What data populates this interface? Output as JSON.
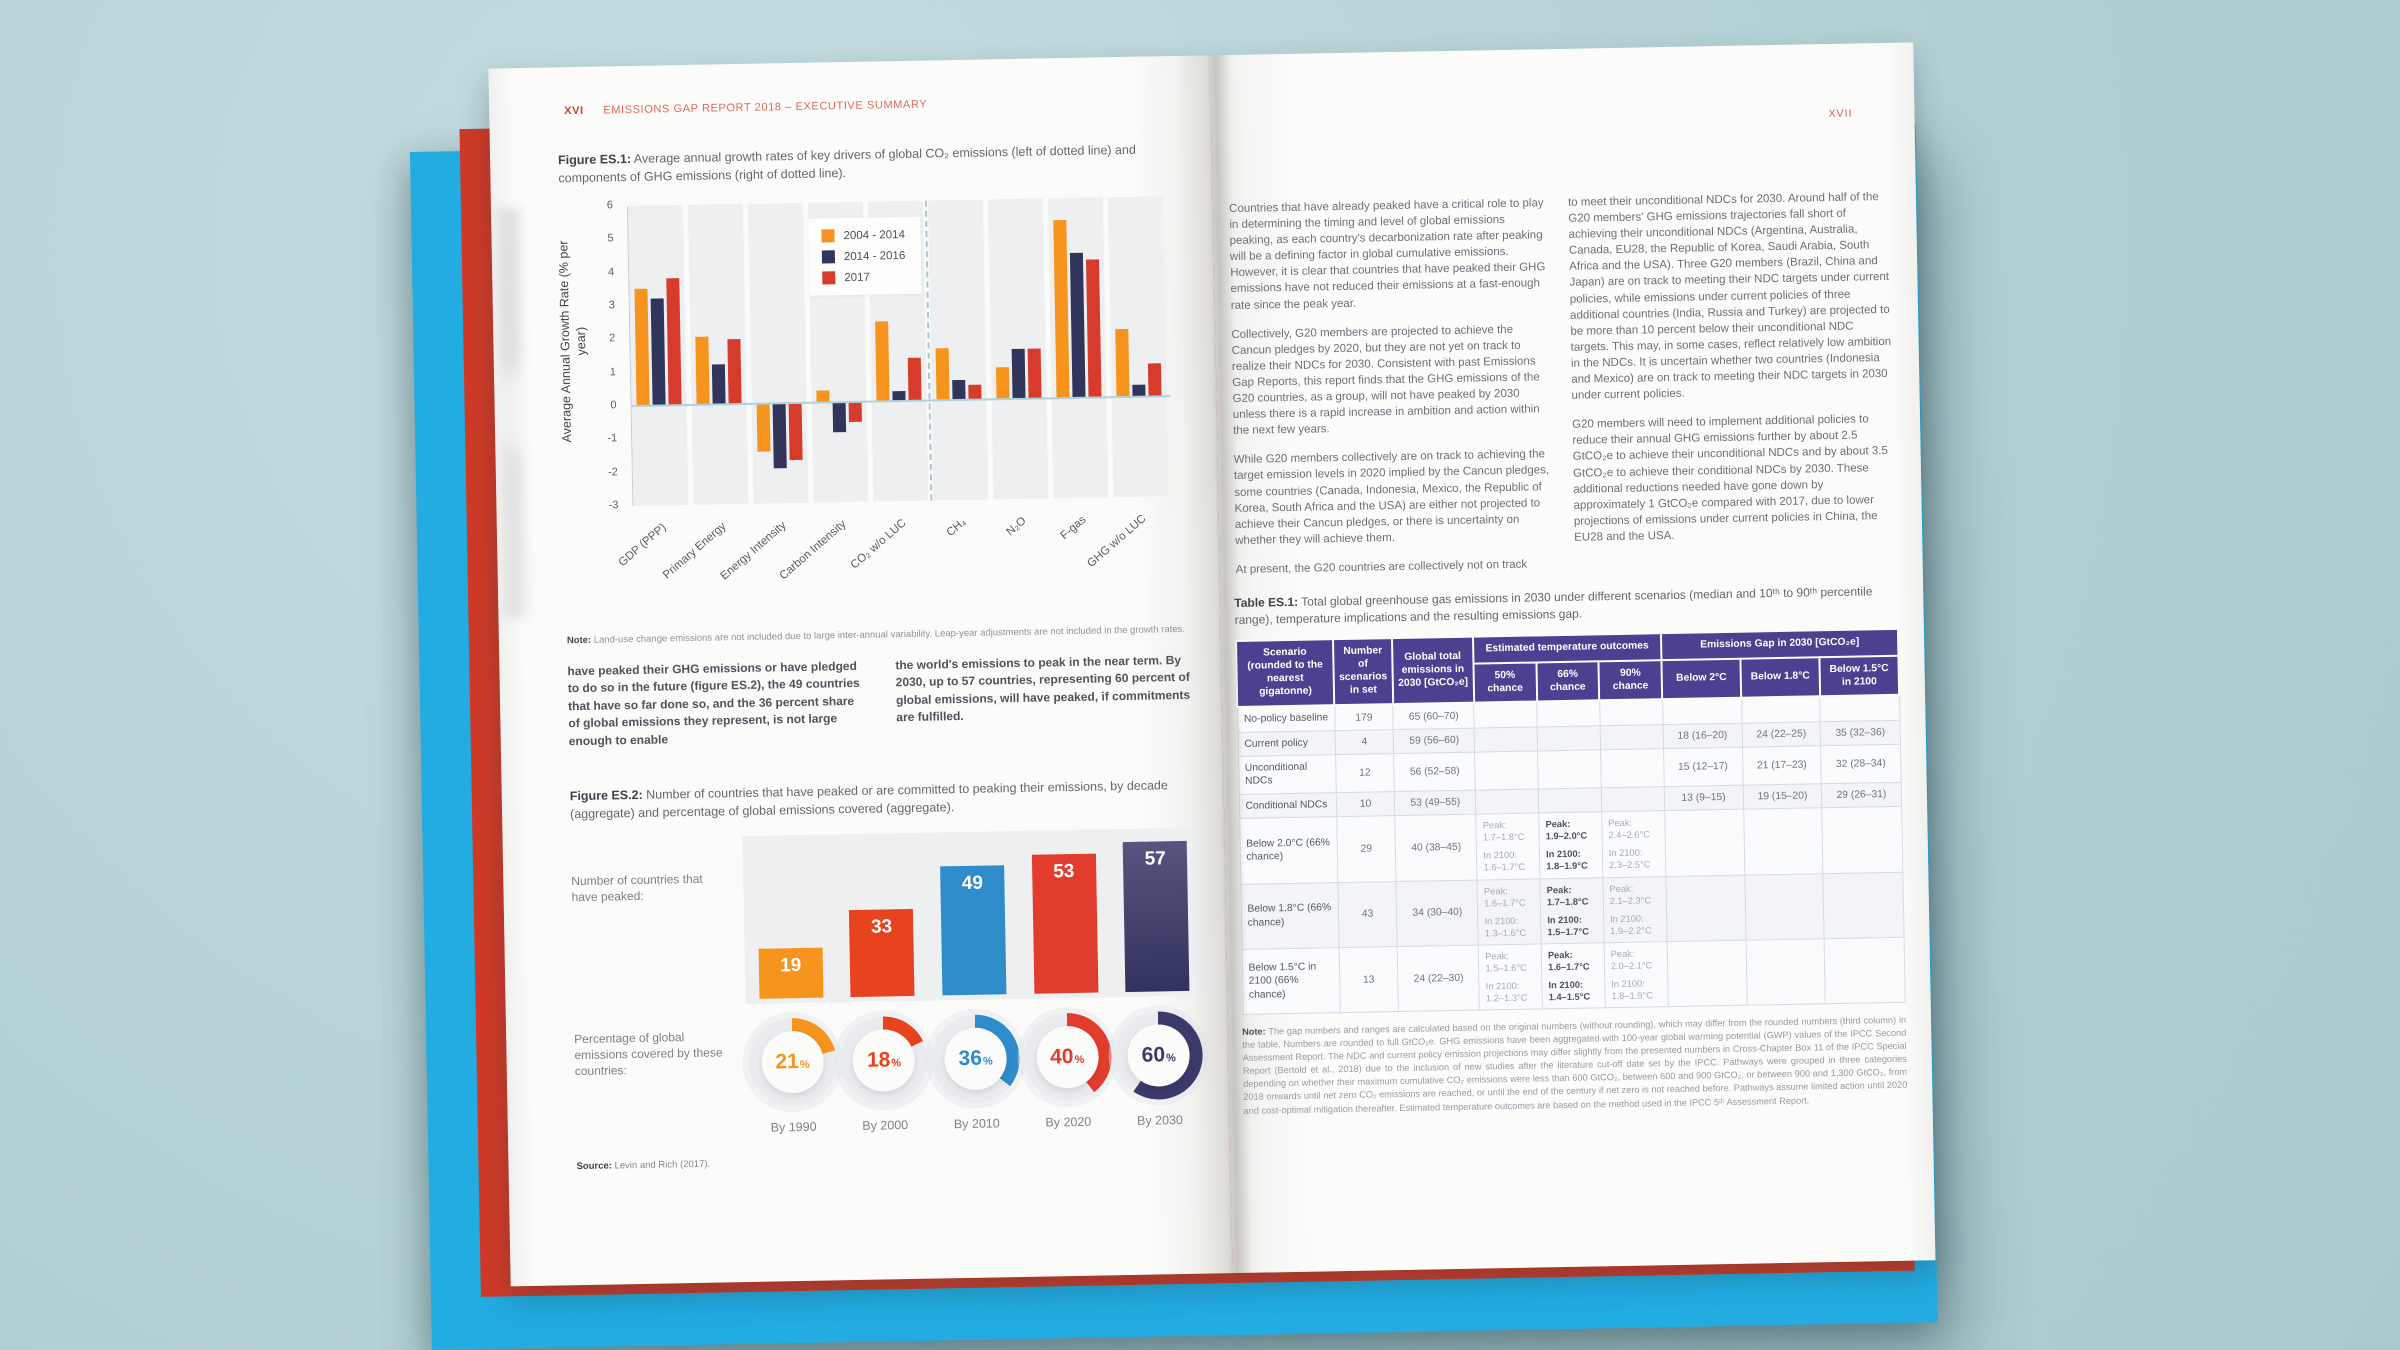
{
  "background_color": "#b4d1d5",
  "accent_colors": {
    "cover_blue": "#22ace2",
    "insert_red": "#d03a27",
    "header_red": "#dd6b55",
    "table_purple": "#4c4190"
  },
  "book": {
    "left_page": {
      "header": {
        "page_num": "XVI",
        "title": "EMISSIONS GAP REPORT 2018 – EXECUTIVE SUMMARY"
      },
      "figure1": {
        "caption_label": "Figure ES.1:",
        "caption_text": "Average annual growth rates of key drivers of global CO₂ emissions (left of dotted line) and components of GHG emissions (right of dotted line).",
        "note_label": "Note:",
        "note_text": "Land-use change emissions are not included due to large inter-annual variability. Leap-year adjustments are not included in the growth rates."
      },
      "body_col1": "have peaked their GHG emissions or have pledged to do so in the future (figure ES.2), the 49 countries that have so far done so, and the 36 percent share of global emissions they represent, is not large enough to enable",
      "body_col2": "the world's emissions to peak in the near term. By 2030, up to 57 countries, representing 60 percent of global emissions, will have peaked, if commitments are fulfilled.",
      "figure2": {
        "caption_label": "Figure ES.2:",
        "caption_text": "Number of countries that have peaked or are committed to peaking their emissions, by decade (aggregate) and percentage of global emissions covered (aggregate).",
        "row1_label": "Number of countries that have peaked:",
        "row2_label": "Percentage of global emissions covered by these countries:",
        "source_label": "Source:",
        "source_text": "Levin and Rich (2017)."
      }
    },
    "right_page": {
      "page_num": "XVII",
      "col1_paragraphs": [
        "Countries that have already peaked have a critical role to play in determining the timing and level of global emissions peaking, as each country's decarbonization rate after peaking will be a defining factor in global cumulative emissions. However, it is clear that countries that have peaked their GHG emissions have not reduced their emissions at a fast-enough rate since the peak year.",
        "Collectively, G20 members are projected to achieve the Cancun pledges by 2020, but they are not yet on track to realize their NDCs for 2030. Consistent with past Emissions Gap Reports, this report finds that the GHG emissions of the G20 countries, as a group, will not have peaked by 2030 unless there is a rapid increase in ambition and action within the next few years.",
        "While G20 members collectively are on track to achieving the target emission levels in 2020 implied by the Cancun pledges, some countries (Canada, Indonesia, Mexico, the Republic of Korea, South Africa and the USA) are either not projected to achieve their Cancun pledges, or there is uncertainty on whether they will achieve them.",
        "At present, the G20 countries are collectively not on track"
      ],
      "col2_paragraphs": [
        "to meet their unconditional NDCs for 2030. Around half of the G20 members' GHG emissions trajectories fall short of achieving their unconditional NDCs (Argentina, Australia, Canada, EU28, the Republic of Korea, Saudi Arabia, South Africa and the USA). Three G20 members (Brazil, China and Japan) are on track to meeting their NDC targets under current policies, while emissions under current policies of three additional countries (India, Russia and Turkey) are projected to be more than 10 percent below their unconditional NDC targets. This may, in some cases, reflect relatively low ambition in the NDCs. It is uncertain whether two countries (Indonesia and Mexico) are on track to meeting their NDC targets in 2030 under current policies.",
        "G20 members will need to implement additional policies to reduce their annual GHG emissions further by about 2.5 GtCO₂e to achieve their unconditional NDCs and by about 3.5 GtCO₂e to achieve their conditional NDCs by 2030. These additional reductions needed have gone down by approximately 1 GtCO₂e compared with 2017, due to lower projections of emissions under current policies in China, the EU28 and the USA."
      ],
      "table": {
        "caption_label": "Table ES.1:",
        "caption_text": "Total global greenhouse gas emissions in 2030 under different scenarios (median and 10ᵗʰ to 90ᵗʰ percentile range), temperature implications and the resulting emissions gap.",
        "header": {
          "scenario": "Scenario (rounded to the nearest gigatonne)",
          "num": "Number of scenarios in set",
          "total": "Global total emissions in 2030 [GtCO₂e]",
          "temp_group": "Estimated temperature outcomes",
          "temp_cols": [
            "50% chance",
            "66% chance",
            "90% chance"
          ],
          "gap_group": "Emissions Gap in 2030 [GtCO₂e]",
          "gap_cols": [
            "Below 2°C",
            "Below 1.8°C",
            "Below 1.5°C in 2100"
          ]
        },
        "peak_label": "Peak:",
        "y2100_label": "In 2100:",
        "rows": [
          {
            "scenario": "No-policy baseline",
            "num": "179",
            "total": "65 (60–70)",
            "temps": [
              null,
              null,
              null
            ],
            "gaps": [
              "",
              "",
              ""
            ]
          },
          {
            "scenario": "Current policy",
            "num": "4",
            "total": "59 (56–60)",
            "temps": [
              null,
              null,
              null
            ],
            "gaps": [
              "18 (16–20)",
              "24 (22–25)",
              "35 (32–36)"
            ]
          },
          {
            "scenario": "Unconditional NDCs",
            "num": "12",
            "total": "56 (52–58)",
            "temps": [
              null,
              null,
              null
            ],
            "gaps": [
              "15 (12–17)",
              "21 (17–23)",
              "32 (28–34)"
            ]
          },
          {
            "scenario": "Conditional NDCs",
            "num": "10",
            "total": "53 (49–55)",
            "temps": [
              null,
              null,
              null
            ],
            "gaps": [
              "13 (9–15)",
              "19 (15–20)",
              "29 (26–31)"
            ]
          },
          {
            "scenario": "Below 2.0°C (66% chance)",
            "num": "29",
            "total": "40 (38–45)",
            "temps": [
              {
                "peak": "1.7–1.8°C",
                "y2100": "1.6–1.7°C"
              },
              {
                "peak": "1.9–2.0°C",
                "y2100": "1.8–1.9°C"
              },
              {
                "peak": "2.4–2.6°C",
                "y2100": "2.3–2.5°C"
              }
            ],
            "gaps": [
              "",
              "",
              ""
            ]
          },
          {
            "scenario": "Below 1.8°C (66% chance)",
            "num": "43",
            "total": "34 (30–40)",
            "temps": [
              {
                "peak": "1.6–1.7°C",
                "y2100": "1.3–1.6°C"
              },
              {
                "peak": "1.7–1.8°C",
                "y2100": "1.5–1.7°C"
              },
              {
                "peak": "2.1–2.3°C",
                "y2100": "1.9–2.2°C"
              }
            ],
            "gaps": [
              "",
              "",
              ""
            ]
          },
          {
            "scenario": "Below 1.5°C in 2100 (66% chance)",
            "num": "13",
            "total": "24 (22–30)",
            "temps": [
              {
                "peak": "1.5–1.6°C",
                "y2100": "1.2–1.3°C"
              },
              {
                "peak": "1.6–1.7°C",
                "y2100": "1.4–1.5°C"
              },
              {
                "peak": "2.0–2.1°C",
                "y2100": "1.8–1.9°C"
              }
            ],
            "gaps": [
              "",
              "",
              ""
            ]
          }
        ],
        "note_label": "Note:",
        "note_text": "The gap numbers and ranges are calculated based on the original numbers (without rounding), which may differ from the rounded numbers (third column) in the table. Numbers are rounded to full GtCO₂e. GHG emissions have been aggregated with 100-year global warming potential (GWP) values of the IPCC Second Assessment Report. The NDC and current policy emission projections may differ slightly from the presented numbers in Cross-Chapter Box 11 of the IPCC Special Report (Bertold et al., 2018) due to the inclusion of new studies after the literature cut-off date set by the IPCC. Pathways were grouped in three categories depending on whether their maximum cumulative CO₂ emissions were less than 600 GtCO₂, between 600 and 900 GtCO₂, or between 900 and 1,300 GtCO₂, from 2018 onwards until net zero CO₂ emissions are reached, or until the end of the century if net zero is not reached before. Pathways assume limited action until 2020 and cost-optimal mitigation thereafter. Estimated temperature outcomes are based on the method used in the IPCC 5ᵗʰ Assessment Report."
      }
    }
  },
  "chart_data": [
    {
      "type": "bar",
      "figure": "ES.1",
      "title": "Average annual growth rates of key drivers of global CO₂ emissions (left of dotted line) and components of GHG emissions (right of dotted line)",
      "ylabel": "Average Annual Growth Rate (% per year)",
      "xlabel": "",
      "ylim": [
        -3,
        6
      ],
      "yticks": [
        6,
        5,
        4,
        3,
        2,
        1,
        0,
        -1,
        -2,
        -3
      ],
      "grid": false,
      "legend_position": "inside top-left",
      "categories": [
        "GDP (PPP)",
        "Primary Energy",
        "Energy Intensity",
        "Carbon Intensity",
        "CO₂ w/o LUC",
        "CH₄",
        "N₂O",
        "F-gas",
        "GHG w/o LUC"
      ],
      "divider_after_index": 4,
      "series": [
        {
          "name": "2004 - 2014",
          "color": "#F7941E",
          "values": [
            3.5,
            2.05,
            -1.45,
            0.35,
            2.4,
            1.55,
            0.95,
            5.35,
            2.05
          ]
        },
        {
          "name": "2014 - 2016",
          "color": "#32355B",
          "values": [
            3.2,
            1.2,
            -1.95,
            -0.9,
            0.3,
            0.6,
            1.5,
            4.35,
            0.35
          ]
        },
        {
          "name": "2017",
          "color": "#D63B2B",
          "values": [
            3.8,
            1.95,
            -1.7,
            -0.6,
            1.3,
            0.45,
            1.5,
            4.15,
            1.0
          ]
        }
      ]
    },
    {
      "type": "bar",
      "figure": "ES.2",
      "title": "Number of countries that have peaked or are committed to peaking their emissions, by decade, and percentage of global emissions covered",
      "categories": [
        "By 1990",
        "By 2000",
        "By 2010",
        "By 2020",
        "By 2030"
      ],
      "colors": [
        "#F7941E",
        "#E8431F",
        "#2E8CCB",
        "#E23C2E",
        "#3B3B6B"
      ],
      "bar_max_value": 57,
      "series": [
        {
          "name": "Number of countries that have peaked",
          "values": [
            19,
            33,
            49,
            53,
            57
          ]
        },
        {
          "name": "Percentage of global emissions covered by these countries",
          "unit": "%",
          "values": [
            21,
            18,
            36,
            40,
            60
          ]
        }
      ]
    }
  ]
}
